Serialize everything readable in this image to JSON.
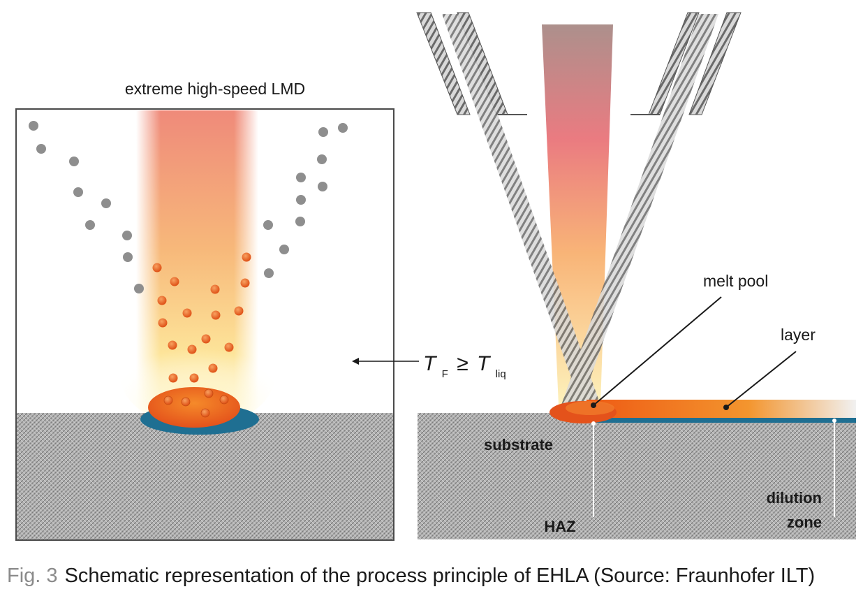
{
  "left_panel": {
    "title": "extreme high-speed LMD",
    "temperature_label": {
      "T1": "T",
      "sub1": "F",
      "relation": "≥",
      "T2": "T",
      "sub2": "liq"
    }
  },
  "right_panel": {
    "labels": {
      "melt_pool": "melt pool",
      "layer": "layer",
      "substrate": "substrate",
      "haz": "HAZ",
      "dilution_line1": "dilution",
      "dilution_line2": "zone"
    }
  },
  "caption": {
    "fig": "Fig. 3",
    "text": "Schematic representation of the process principle of EHLA (Source: Fraunhofer ILT)"
  },
  "colors": {
    "powder_gray": "#8e8e8e",
    "powder_hot": "#e8631a",
    "melt_orange": "#ee6d1e",
    "dilution_blue": "#1f6f92",
    "substrate_gray": "#9a9a9a"
  }
}
